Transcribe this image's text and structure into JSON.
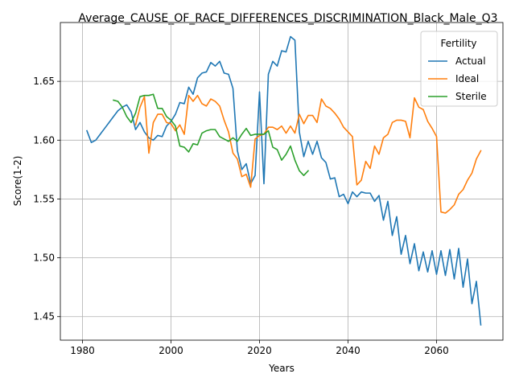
{
  "chart_data": {
    "type": "line",
    "title": "Average_CAUSE_OF_RACE_DIFFERENCES_DISCRIMINATION_Black_Male_Q3",
    "xlabel": "Years",
    "ylabel": "Score(1-2)",
    "xlim": [
      1975,
      2075
    ],
    "ylim": [
      1.43,
      1.7
    ],
    "xticks": [
      1980,
      2000,
      2020,
      2040,
      2060
    ],
    "yticks": [
      1.45,
      1.5,
      1.55,
      1.6,
      1.65
    ],
    "xtick_labels": [
      "1980",
      "2000",
      "2020",
      "2040",
      "2060"
    ],
    "ytick_labels": [
      "1.45",
      "1.50",
      "1.55",
      "1.60",
      "1.65"
    ],
    "grid": true,
    "legend": {
      "title": "Fertility",
      "placement": "top-right"
    },
    "series": [
      {
        "name": "Actual",
        "color": "#1f77b4",
        "points": [
          [
            1981,
            1.608
          ],
          [
            1982,
            1.598
          ],
          [
            1983,
            1.6
          ],
          [
            1984,
            1.605
          ],
          [
            1985,
            1.61
          ],
          [
            1986,
            1.615
          ],
          [
            1987,
            1.62
          ],
          [
            1988,
            1.625
          ],
          [
            1989,
            1.628
          ],
          [
            1990,
            1.63
          ],
          [
            1991,
            1.624
          ],
          [
            1992,
            1.609
          ],
          [
            1993,
            1.615
          ],
          [
            1994,
            1.607
          ],
          [
            1995,
            1.602
          ],
          [
            1996,
            1.6
          ],
          [
            1997,
            1.604
          ],
          [
            1998,
            1.603
          ],
          [
            1999,
            1.612
          ],
          [
            2000,
            1.616
          ],
          [
            2001,
            1.622
          ],
          [
            2002,
            1.632
          ],
          [
            2003,
            1.631
          ],
          [
            2004,
            1.645
          ],
          [
            2005,
            1.639
          ],
          [
            2006,
            1.653
          ],
          [
            2007,
            1.657
          ],
          [
            2008,
            1.658
          ],
          [
            2009,
            1.666
          ],
          [
            2010,
            1.663
          ],
          [
            2011,
            1.667
          ],
          [
            2012,
            1.657
          ],
          [
            2013,
            1.656
          ],
          [
            2014,
            1.644
          ],
          [
            2015,
            1.591
          ],
          [
            2016,
            1.575
          ],
          [
            2017,
            1.58
          ],
          [
            2018,
            1.563
          ],
          [
            2019,
            1.57
          ],
          [
            2020,
            1.641
          ],
          [
            2021,
            1.563
          ],
          [
            2022,
            1.656
          ],
          [
            2023,
            1.667
          ],
          [
            2024,
            1.663
          ],
          [
            2025,
            1.676
          ],
          [
            2026,
            1.675
          ],
          [
            2027,
            1.688
          ],
          [
            2028,
            1.685
          ],
          [
            2029,
            1.607
          ],
          [
            2030,
            1.586
          ],
          [
            2031,
            1.599
          ],
          [
            2032,
            1.588
          ],
          [
            2033,
            1.599
          ],
          [
            2034,
            1.585
          ],
          [
            2035,
            1.581
          ],
          [
            2036,
            1.567
          ],
          [
            2037,
            1.568
          ],
          [
            2038,
            1.552
          ],
          [
            2039,
            1.554
          ],
          [
            2040,
            1.546
          ],
          [
            2041,
            1.556
          ],
          [
            2042,
            1.552
          ],
          [
            2043,
            1.556
          ],
          [
            2044,
            1.555
          ],
          [
            2045,
            1.555
          ],
          [
            2046,
            1.548
          ],
          [
            2047,
            1.553
          ],
          [
            2048,
            1.532
          ],
          [
            2049,
            1.548
          ],
          [
            2050,
            1.519
          ],
          [
            2051,
            1.535
          ],
          [
            2052,
            1.503
          ],
          [
            2053,
            1.519
          ],
          [
            2054,
            1.495
          ],
          [
            2055,
            1.512
          ],
          [
            2056,
            1.489
          ],
          [
            2057,
            1.505
          ],
          [
            2058,
            1.488
          ],
          [
            2059,
            1.506
          ],
          [
            2060,
            1.486
          ],
          [
            2061,
            1.506
          ],
          [
            2062,
            1.485
          ],
          [
            2063,
            1.507
          ],
          [
            2064,
            1.482
          ],
          [
            2065,
            1.508
          ],
          [
            2066,
            1.475
          ],
          [
            2067,
            1.499
          ],
          [
            2068,
            1.461
          ],
          [
            2069,
            1.48
          ],
          [
            2070,
            1.443
          ]
        ]
      },
      {
        "name": "Ideal",
        "color": "#ff7f0e",
        "points": [
          [
            1992,
            1.613
          ],
          [
            1993,
            1.628
          ],
          [
            1994,
            1.637
          ],
          [
            1995,
            1.589
          ],
          [
            1996,
            1.615
          ],
          [
            1997,
            1.622
          ],
          [
            1998,
            1.622
          ],
          [
            1999,
            1.615
          ],
          [
            2000,
            1.614
          ],
          [
            2001,
            1.608
          ],
          [
            2002,
            1.613
          ],
          [
            2003,
            1.605
          ],
          [
            2004,
            1.638
          ],
          [
            2005,
            1.633
          ],
          [
            2006,
            1.638
          ],
          [
            2007,
            1.631
          ],
          [
            2008,
            1.629
          ],
          [
            2009,
            1.635
          ],
          [
            2010,
            1.633
          ],
          [
            2011,
            1.629
          ],
          [
            2012,
            1.617
          ],
          [
            2013,
            1.607
          ],
          [
            2014,
            1.589
          ],
          [
            2015,
            1.584
          ],
          [
            2016,
            1.569
          ],
          [
            2017,
            1.571
          ],
          [
            2018,
            1.56
          ],
          [
            2019,
            1.601
          ],
          [
            2020,
            1.604
          ],
          [
            2021,
            1.605
          ],
          [
            2022,
            1.611
          ],
          [
            2023,
            1.611
          ],
          [
            2024,
            1.609
          ],
          [
            2025,
            1.612
          ],
          [
            2026,
            1.606
          ],
          [
            2027,
            1.612
          ],
          [
            2028,
            1.606
          ],
          [
            2029,
            1.622
          ],
          [
            2030,
            1.614
          ],
          [
            2031,
            1.621
          ],
          [
            2032,
            1.621
          ],
          [
            2033,
            1.615
          ],
          [
            2034,
            1.635
          ],
          [
            2035,
            1.629
          ],
          [
            2036,
            1.627
          ],
          [
            2037,
            1.623
          ],
          [
            2038,
            1.618
          ],
          [
            2039,
            1.611
          ],
          [
            2040,
            1.607
          ],
          [
            2041,
            1.603
          ],
          [
            2042,
            1.562
          ],
          [
            2043,
            1.566
          ],
          [
            2044,
            1.582
          ],
          [
            2045,
            1.576
          ],
          [
            2046,
            1.595
          ],
          [
            2047,
            1.588
          ],
          [
            2048,
            1.602
          ],
          [
            2049,
            1.605
          ],
          [
            2050,
            1.615
          ],
          [
            2051,
            1.617
          ],
          [
            2052,
            1.617
          ],
          [
            2053,
            1.616
          ],
          [
            2054,
            1.602
          ],
          [
            2055,
            1.636
          ],
          [
            2056,
            1.628
          ],
          [
            2057,
            1.626
          ],
          [
            2058,
            1.616
          ],
          [
            2059,
            1.61
          ],
          [
            2060,
            1.603
          ],
          [
            2061,
            1.539
          ],
          [
            2062,
            1.538
          ],
          [
            2063,
            1.541
          ],
          [
            2064,
            1.545
          ],
          [
            2065,
            1.554
          ],
          [
            2066,
            1.558
          ],
          [
            2067,
            1.566
          ],
          [
            2068,
            1.572
          ],
          [
            2069,
            1.584
          ],
          [
            2070,
            1.591
          ]
        ]
      },
      {
        "name": "Sterile",
        "color": "#2ca02c",
        "points": [
          [
            1987,
            1.634
          ],
          [
            1988,
            1.633
          ],
          [
            1989,
            1.628
          ],
          [
            1990,
            1.62
          ],
          [
            1991,
            1.615
          ],
          [
            1992,
            1.623
          ],
          [
            1993,
            1.637
          ],
          [
            1994,
            1.638
          ],
          [
            1995,
            1.638
          ],
          [
            1996,
            1.639
          ],
          [
            1997,
            1.627
          ],
          [
            1998,
            1.627
          ],
          [
            1999,
            1.62
          ],
          [
            2000,
            1.617
          ],
          [
            2001,
            1.612
          ],
          [
            2002,
            1.595
          ],
          [
            2003,
            1.594
          ],
          [
            2004,
            1.59
          ],
          [
            2005,
            1.597
          ],
          [
            2006,
            1.596
          ],
          [
            2007,
            1.606
          ],
          [
            2008,
            1.608
          ],
          [
            2009,
            1.609
          ],
          [
            2010,
            1.609
          ],
          [
            2011,
            1.603
          ],
          [
            2012,
            1.601
          ],
          [
            2013,
            1.599
          ],
          [
            2014,
            1.602
          ],
          [
            2015,
            1.599
          ],
          [
            2016,
            1.605
          ],
          [
            2017,
            1.61
          ],
          [
            2018,
            1.604
          ],
          [
            2019,
            1.605
          ],
          [
            2020,
            1.605
          ],
          [
            2021,
            1.605
          ],
          [
            2022,
            1.608
          ],
          [
            2023,
            1.594
          ],
          [
            2024,
            1.592
          ],
          [
            2025,
            1.583
          ],
          [
            2026,
            1.588
          ],
          [
            2027,
            1.595
          ],
          [
            2028,
            1.583
          ],
          [
            2029,
            1.574
          ],
          [
            2030,
            1.57
          ],
          [
            2031,
            1.574
          ]
        ]
      }
    ]
  }
}
